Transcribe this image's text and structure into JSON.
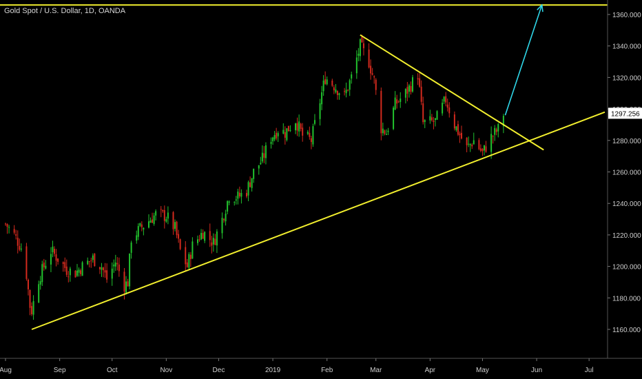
{
  "header": {
    "title": "Gold Spot / U.S. Dollar, 1D, OANDA"
  },
  "colors": {
    "background": "#000000",
    "up": "#22c32e",
    "down": "#d42a1e",
    "trendline": "#f2ef2e",
    "arrow": "#2fd6e8",
    "axis_text": "#cfcfcf",
    "price_tag_bg": "#ffffff",
    "price_tag_text": "#000000"
  },
  "chart_data": {
    "type": "candlestick",
    "title": "Gold Spot / U.S. Dollar, 1D, OANDA",
    "ylim": [
      1140,
      1370
    ],
    "y_ticks": [
      "1160.000",
      "1180.000",
      "1200.000",
      "1220.000",
      "1240.000",
      "1260.000",
      "1280.000",
      "1300.000",
      "1320.000",
      "1340.000",
      "1360.000"
    ],
    "x_ticks": [
      "Aug",
      "Sep",
      "Oct",
      "Nov",
      "Dec",
      "2019",
      "Feb",
      "Mar",
      "Apr",
      "May",
      "Jun",
      "Jul"
    ],
    "x_range": [
      "2018-08-01",
      "2019-07-10"
    ],
    "current_price": "1297.256",
    "grid": false,
    "close_path": [
      [
        "2018-08-01",
        1227
      ],
      [
        "2018-08-06",
        1220
      ],
      [
        "2018-08-10",
        1212
      ],
      [
        "2018-08-13",
        1195
      ],
      [
        "2018-08-15",
        1175
      ],
      [
        "2018-08-16",
        1172
      ],
      [
        "2018-08-20",
        1192
      ],
      [
        "2018-08-23",
        1200
      ],
      [
        "2018-08-27",
        1210
      ],
      [
        "2018-08-31",
        1205
      ],
      [
        "2018-09-05",
        1198
      ],
      [
        "2018-09-10",
        1196
      ],
      [
        "2018-09-14",
        1200
      ],
      [
        "2018-09-20",
        1205
      ],
      [
        "2018-09-25",
        1200
      ],
      [
        "2018-09-28",
        1192
      ],
      [
        "2018-10-03",
        1203
      ],
      [
        "2018-10-08",
        1188
      ],
      [
        "2018-10-10",
        1190
      ],
      [
        "2018-10-12",
        1218
      ],
      [
        "2018-10-18",
        1225
      ],
      [
        "2018-10-26",
        1233
      ],
      [
        "2018-11-01",
        1232
      ],
      [
        "2018-11-06",
        1224
      ],
      [
        "2018-11-09",
        1210
      ],
      [
        "2018-11-13",
        1200
      ],
      [
        "2018-11-16",
        1213
      ],
      [
        "2018-11-22",
        1222
      ],
      [
        "2018-11-28",
        1215
      ],
      [
        "2018-12-03",
        1230
      ],
      [
        "2018-12-07",
        1245
      ],
      [
        "2018-12-12",
        1244
      ],
      [
        "2018-12-17",
        1248
      ],
      [
        "2018-12-21",
        1260
      ],
      [
        "2018-12-26",
        1268
      ],
      [
        "2018-12-31",
        1282
      ],
      [
        "2019-01-04",
        1287
      ],
      [
        "2019-01-08",
        1285
      ],
      [
        "2019-01-14",
        1293
      ],
      [
        "2019-01-18",
        1283
      ],
      [
        "2019-01-23",
        1280
      ],
      [
        "2019-01-28",
        1305
      ],
      [
        "2019-01-31",
        1320
      ],
      [
        "2019-02-05",
        1315
      ],
      [
        "2019-02-11",
        1308
      ],
      [
        "2019-02-15",
        1320
      ],
      [
        "2019-02-20",
        1340
      ],
      [
        "2019-02-25",
        1330
      ],
      [
        "2019-02-28",
        1318
      ],
      [
        "2019-03-04",
        1288
      ],
      [
        "2019-03-07",
        1285
      ],
      [
        "2019-03-12",
        1303
      ],
      [
        "2019-03-18",
        1310
      ],
      [
        "2019-03-25",
        1322
      ],
      [
        "2019-03-28",
        1291
      ],
      [
        "2019-04-04",
        1292
      ],
      [
        "2019-04-10",
        1306
      ],
      [
        "2019-04-15",
        1290
      ],
      [
        "2019-04-22",
        1275
      ],
      [
        "2019-04-26",
        1280
      ],
      [
        "2019-05-01",
        1272
      ],
      [
        "2019-05-06",
        1282
      ],
      [
        "2019-05-10",
        1287
      ],
      [
        "2019-05-13",
        1297
      ]
    ],
    "annotations": [
      {
        "type": "horizontal_line",
        "price": 1366
      },
      {
        "type": "support_line",
        "from": [
          "2018-08-16",
          1160
        ],
        "to": [
          "2019-07-10",
          1298
        ]
      },
      {
        "type": "resistance_line",
        "from": [
          "2019-02-20",
          1347
        ],
        "to": [
          "2019-06-05",
          1274
        ]
      },
      {
        "type": "arrow",
        "from": [
          "2019-05-14",
          1296
        ],
        "to": [
          "2019-06-04",
          1366
        ]
      }
    ]
  }
}
